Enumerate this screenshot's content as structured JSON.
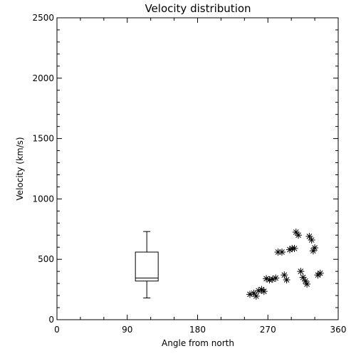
{
  "chart_data": {
    "type": "scatter",
    "title": "Velocity distribution",
    "xlabel": "Angle from north",
    "ylabel": "Velocity (km/s)",
    "xlim": [
      0,
      360
    ],
    "ylim": [
      0,
      2500
    ],
    "xticks": [
      0,
      90,
      180,
      270,
      360
    ],
    "yticks": [
      0,
      500,
      1000,
      1500,
      2000,
      2500
    ],
    "grid": false,
    "boxplot": {
      "x": 115,
      "whisker_low": 180,
      "q1": 320,
      "median": 345,
      "q3": 560,
      "whisker_high": 730
    },
    "series": [
      {
        "marker": "asterisk",
        "points": [
          [
            247,
            210
          ],
          [
            252,
            220
          ],
          [
            255,
            195
          ],
          [
            258,
            240
          ],
          [
            262,
            250
          ],
          [
            265,
            235
          ],
          [
            268,
            340
          ],
          [
            272,
            330
          ],
          [
            276,
            335
          ],
          [
            280,
            345
          ],
          [
            283,
            560
          ],
          [
            288,
            560
          ],
          [
            291,
            370
          ],
          [
            294,
            330
          ],
          [
            298,
            580
          ],
          [
            301,
            590
          ],
          [
            304,
            590
          ],
          [
            306,
            725
          ],
          [
            309,
            700
          ],
          [
            312,
            400
          ],
          [
            315,
            350
          ],
          [
            318,
            320
          ],
          [
            320,
            295
          ],
          [
            323,
            690
          ],
          [
            326,
            660
          ],
          [
            328,
            570
          ],
          [
            330,
            595
          ],
          [
            334,
            370
          ],
          [
            337,
            385
          ]
        ]
      }
    ]
  }
}
